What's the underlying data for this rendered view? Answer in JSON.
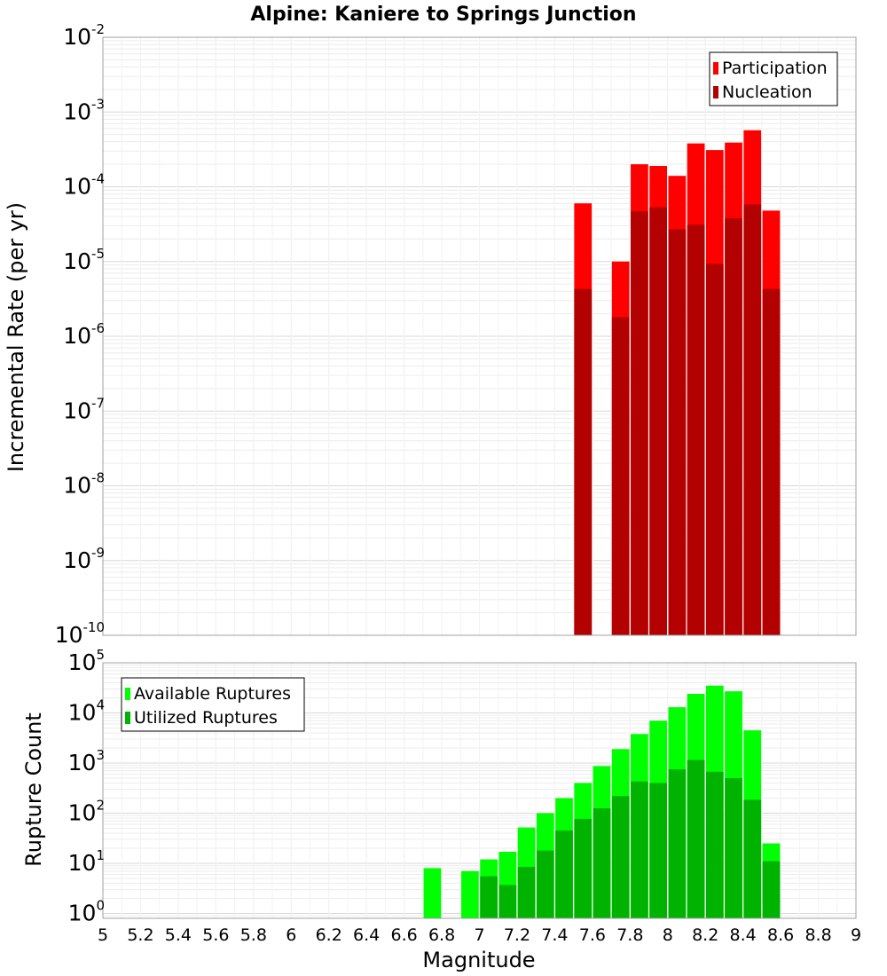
{
  "chart_data": [
    {
      "type": "bar",
      "title": "Alpine: Kaniere to Springs Junction",
      "xlabel": "Magnitude",
      "ylabel": "Incremental Rate (per yr)",
      "yscale": "log",
      "ylim": [
        1e-10,
        0.01
      ],
      "xlim": [
        5,
        9
      ],
      "bar_width": 0.1,
      "grid": true,
      "legend_position": "top-right",
      "x_ticks": [
        5,
        5.2,
        5.4,
        5.6,
        5.8,
        6,
        6.2,
        6.4,
        6.6,
        6.8,
        7,
        7.2,
        7.4,
        7.6,
        7.8,
        8,
        8.2,
        8.4,
        8.6,
        8.8,
        9
      ],
      "x_tick_labels": [
        "5",
        "5.2",
        "5.4",
        "5.6",
        "5.8",
        "6",
        "6.2",
        "6.4",
        "6.6",
        "6.8",
        "7",
        "7.2",
        "7.4",
        "7.6",
        "7.8",
        "8",
        "8.2",
        "8.4",
        "8.6",
        "8.8",
        "9"
      ],
      "y_tick_exponents": [
        "-10",
        "-9",
        "-8",
        "-7",
        "-6",
        "-5",
        "-4",
        "-3",
        "-2"
      ],
      "x": [
        7.55,
        7.75,
        7.85,
        7.95,
        8.05,
        8.15,
        8.25,
        8.35,
        8.45,
        8.55
      ],
      "series": [
        {
          "name": "Participation",
          "color": "#ff0000",
          "values": [
            6e-05,
            1e-05,
            0.0002,
            0.00019,
            0.00014,
            0.00038,
            0.00031,
            0.00039,
            0.00057,
            4.8e-05
          ]
        },
        {
          "name": "Nucleation",
          "color": "#b30000",
          "values": [
            4.3e-06,
            1.8e-06,
            4.7e-05,
            5.3e-05,
            2.7e-05,
            3.1e-05,
            9.3e-06,
            3.8e-05,
            5.8e-05,
            4.3e-06
          ]
        }
      ]
    },
    {
      "type": "bar",
      "xlabel": "Magnitude",
      "ylabel": "Rupture Count",
      "yscale": "log",
      "ylim": [
        0.8,
        100000
      ],
      "xlim": [
        5,
        9
      ],
      "bar_width": 0.1,
      "grid": true,
      "legend_position": "top-left",
      "y_tick_exponents": [
        "0",
        "1",
        "2",
        "3",
        "4",
        "5"
      ],
      "x": [
        6.75,
        6.95,
        7.05,
        7.15,
        7.25,
        7.35,
        7.45,
        7.55,
        7.65,
        7.75,
        7.85,
        7.95,
        8.05,
        8.15,
        8.25,
        8.35,
        8.45,
        8.55
      ],
      "series": [
        {
          "name": "Available Ruptures",
          "color": "#00ff00",
          "values": [
            8,
            7,
            12,
            17,
            52,
            100,
            200,
            400,
            870,
            1900,
            3800,
            7000,
            13000,
            24000,
            35000,
            27000,
            4500,
            25
          ]
        },
        {
          "name": "Utilized Ruptures",
          "color": "#00b300",
          "values": [
            0,
            0,
            5.5,
            3.7,
            8.5,
            18,
            45,
            77,
            125,
            220,
            430,
            400,
            750,
            1150,
            670,
            500,
            185,
            11
          ]
        }
      ]
    }
  ]
}
